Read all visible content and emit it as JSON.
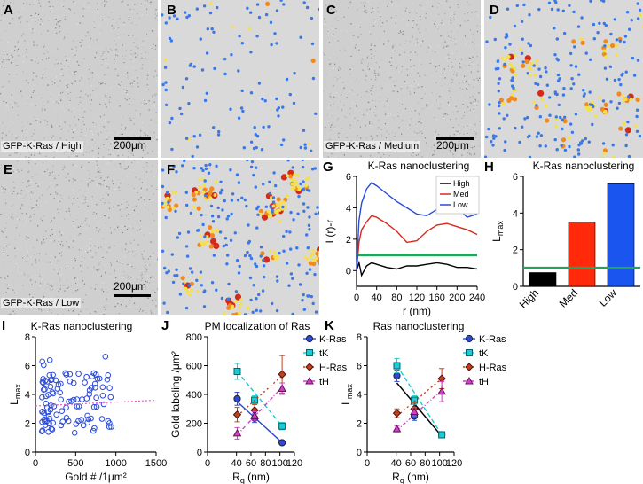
{
  "panels": {
    "A": {
      "letter": "A",
      "caption": "GFP-K-Ras / High",
      "scale": "200μm"
    },
    "B": {
      "letter": "B"
    },
    "C": {
      "letter": "C",
      "caption": "GFP-K-Ras / Medium",
      "scale": "200μm"
    },
    "D": {
      "letter": "D"
    },
    "E": {
      "letter": "E",
      "caption": "GFP-K-Ras / Low",
      "scale": "200μm"
    },
    "F": {
      "letter": "F"
    }
  },
  "colors": {
    "blue": "#3a78e8",
    "yellow": "#f5e04a",
    "orange": "#f08a1e",
    "red": "#d42a1a",
    "green": "#22a45a"
  },
  "chart_data": [
    {
      "id": "G",
      "letter": "G",
      "type": "line",
      "title": "K-Ras nanoclustering",
      "xlabel": "r (nm)",
      "ylabel": "L(r)-r",
      "xlim": [
        0,
        240
      ],
      "ylim": [
        -1,
        6
      ],
      "xticks": [
        "0",
        "40",
        "80",
        "120",
        "160",
        "200",
        "240"
      ],
      "yticks": [
        "0",
        "2",
        "4",
        "6"
      ],
      "reference_line": {
        "y": 1,
        "color": "#22a45a"
      },
      "legend": [
        "High",
        "Med",
        "Low"
      ],
      "series": [
        {
          "name": "High",
          "color": "#000000",
          "x": [
            0,
            5,
            10,
            20,
            30,
            40,
            60,
            80,
            100,
            120,
            140,
            160,
            180,
            200,
            220,
            240
          ],
          "y": [
            0,
            0.5,
            -0.3,
            0.3,
            0.5,
            0.4,
            0.2,
            0.1,
            0.3,
            0.3,
            0.4,
            0.5,
            0.4,
            0.2,
            0.2,
            0.1
          ]
        },
        {
          "name": "Med",
          "color": "#d42a1a",
          "x": [
            0,
            5,
            10,
            20,
            30,
            40,
            60,
            80,
            100,
            120,
            140,
            160,
            180,
            200,
            220,
            240
          ],
          "y": [
            0,
            1.8,
            2.6,
            3.1,
            3.5,
            3.4,
            3.0,
            2.5,
            1.8,
            1.9,
            2.5,
            2.9,
            3.0,
            2.8,
            2.6,
            2.3
          ]
        },
        {
          "name": "Low",
          "color": "#2a4ad8",
          "x": [
            0,
            5,
            10,
            20,
            30,
            40,
            60,
            80,
            100,
            120,
            140,
            160,
            180,
            200,
            220,
            240
          ],
          "y": [
            0,
            3.2,
            4.3,
            5.2,
            5.6,
            5.4,
            4.9,
            4.4,
            4.0,
            3.6,
            3.5,
            3.9,
            4.3,
            4.0,
            3.4,
            3.6
          ]
        }
      ]
    },
    {
      "id": "H",
      "letter": "H",
      "type": "bar",
      "title": "K-Ras nanoclustering",
      "ylabel": "L",
      "ylabel_sub": "max",
      "ylim": [
        0,
        6
      ],
      "yticks": [
        "0",
        "2",
        "4",
        "6"
      ],
      "categories": [
        "High",
        "Med",
        "Low"
      ],
      "values": [
        0.75,
        3.5,
        5.6
      ],
      "bar_colors": [
        "#000000",
        "#ff2a0a",
        "#1a55f0"
      ],
      "reference_line": {
        "y": 1,
        "color": "#22a45a"
      }
    },
    {
      "id": "I",
      "letter": "I",
      "type": "scatter",
      "title": "K-Ras nanoclustering",
      "xlabel": "Gold # /1μm²",
      "ylabel": "L",
      "ylabel_sub": "max",
      "xlim": [
        0,
        1500
      ],
      "ylim": [
        0,
        8
      ],
      "xticks": [
        "0",
        "500",
        "1000",
        "1500"
      ],
      "yticks": [
        "0",
        "2",
        "4",
        "6",
        "8"
      ],
      "trend": {
        "x": [
          0,
          1500
        ],
        "y": [
          3.2,
          3.6
        ],
        "color": "#e060c0"
      }
    },
    {
      "id": "J",
      "letter": "J",
      "type": "line",
      "title": "PM localization of Ras",
      "xlabel": "R",
      "xlabel_sub": "q",
      "xlabel_tail": " (nm)",
      "ylabel": "Gold labeling /μm²",
      "xlim": [
        0,
        120
      ],
      "ylim": [
        0,
        800
      ],
      "xticks": [
        "0",
        "40",
        "60",
        "80",
        "100",
        "120"
      ],
      "yticks": [
        "0",
        "200",
        "400",
        "600",
        "800"
      ],
      "series": [
        {
          "name": "K-Ras",
          "color": "#2a4ad8",
          "marker": "circle",
          "dash": "",
          "x": [
            41,
            65,
            103
          ],
          "y": [
            370,
            235,
            65
          ],
          "err": [
            45,
            30,
            10
          ],
          "fit": [
            [
              41,
              350
            ],
            [
              103,
              65
            ]
          ]
        },
        {
          "name": "tK",
          "color": "#1ccad8",
          "marker": "square",
          "dash": "5,3",
          "x": [
            41,
            65,
            103
          ],
          "y": [
            560,
            360,
            180
          ],
          "err": [
            55,
            30,
            25
          ],
          "fit": [
            [
              41,
              560
            ],
            [
              103,
              180
            ]
          ]
        },
        {
          "name": "H-Ras",
          "color": "#c0401a",
          "marker": "diamond",
          "dash": "2,3",
          "x": [
            41,
            65,
            103
          ],
          "y": [
            260,
            290,
            540
          ],
          "err": [
            50,
            40,
            130
          ],
          "fit": [
            [
              41,
              250
            ],
            [
              103,
              530
            ]
          ]
        },
        {
          "name": "tH",
          "color": "#d040c0",
          "marker": "triangle",
          "dash": "4,2,1,2",
          "x": [
            41,
            65,
            103
          ],
          "y": [
            130,
            250,
            440
          ],
          "err": [
            40,
            30,
            40
          ],
          "fit": [
            [
              41,
              120
            ],
            [
              103,
              450
            ]
          ]
        }
      ]
    },
    {
      "id": "K",
      "letter": "K",
      "type": "line",
      "title": "Ras nanoclustering",
      "xlabel": "R",
      "xlabel_sub": "q",
      "xlabel_tail": " (nm)",
      "ylabel": "L",
      "ylabel_sub": "max",
      "xlim": [
        0,
        120
      ],
      "ylim": [
        0,
        8
      ],
      "xticks": [
        "0",
        "40",
        "60",
        "80",
        "100",
        "120"
      ],
      "yticks": [
        "0",
        "2",
        "4",
        "6",
        "8"
      ],
      "series": [
        {
          "name": "K-Ras",
          "color": "#2a4ad8",
          "marker": "circle",
          "dash": "",
          "x": [
            41,
            65,
            103
          ],
          "y": [
            5.3,
            2.5,
            1.2
          ],
          "err": [
            0.4,
            0.3,
            0.2
          ],
          "fit": [
            [
              41,
              4.8
            ],
            [
              103,
              1.1
            ]
          ],
          "fit_color": "#000000"
        },
        {
          "name": "tK",
          "color": "#1ccad8",
          "marker": "square",
          "dash": "5,3",
          "x": [
            41,
            65,
            103
          ],
          "y": [
            6.0,
            3.6,
            1.2
          ],
          "err": [
            0.5,
            0.3,
            0.2
          ],
          "fit": [
            [
              41,
              6.0
            ],
            [
              103,
              1.2
            ]
          ]
        },
        {
          "name": "H-Ras",
          "color": "#c0401a",
          "marker": "diamond",
          "dash": "2,3",
          "x": [
            41,
            65,
            103
          ],
          "y": [
            2.7,
            3.0,
            5.1
          ],
          "err": [
            0.3,
            0.4,
            0.7
          ],
          "fit": [
            [
              41,
              2.5
            ],
            [
              103,
              5.1
            ]
          ]
        },
        {
          "name": "tH",
          "color": "#d040c0",
          "marker": "triangle",
          "dash": "4,2,1,2",
          "x": [
            41,
            65,
            103
          ],
          "y": [
            1.6,
            2.8,
            4.2
          ],
          "err": [
            0.2,
            0.3,
            0.7
          ],
          "fit": [
            [
              41,
              1.5
            ],
            [
              103,
              4.3
            ]
          ]
        }
      ]
    }
  ]
}
